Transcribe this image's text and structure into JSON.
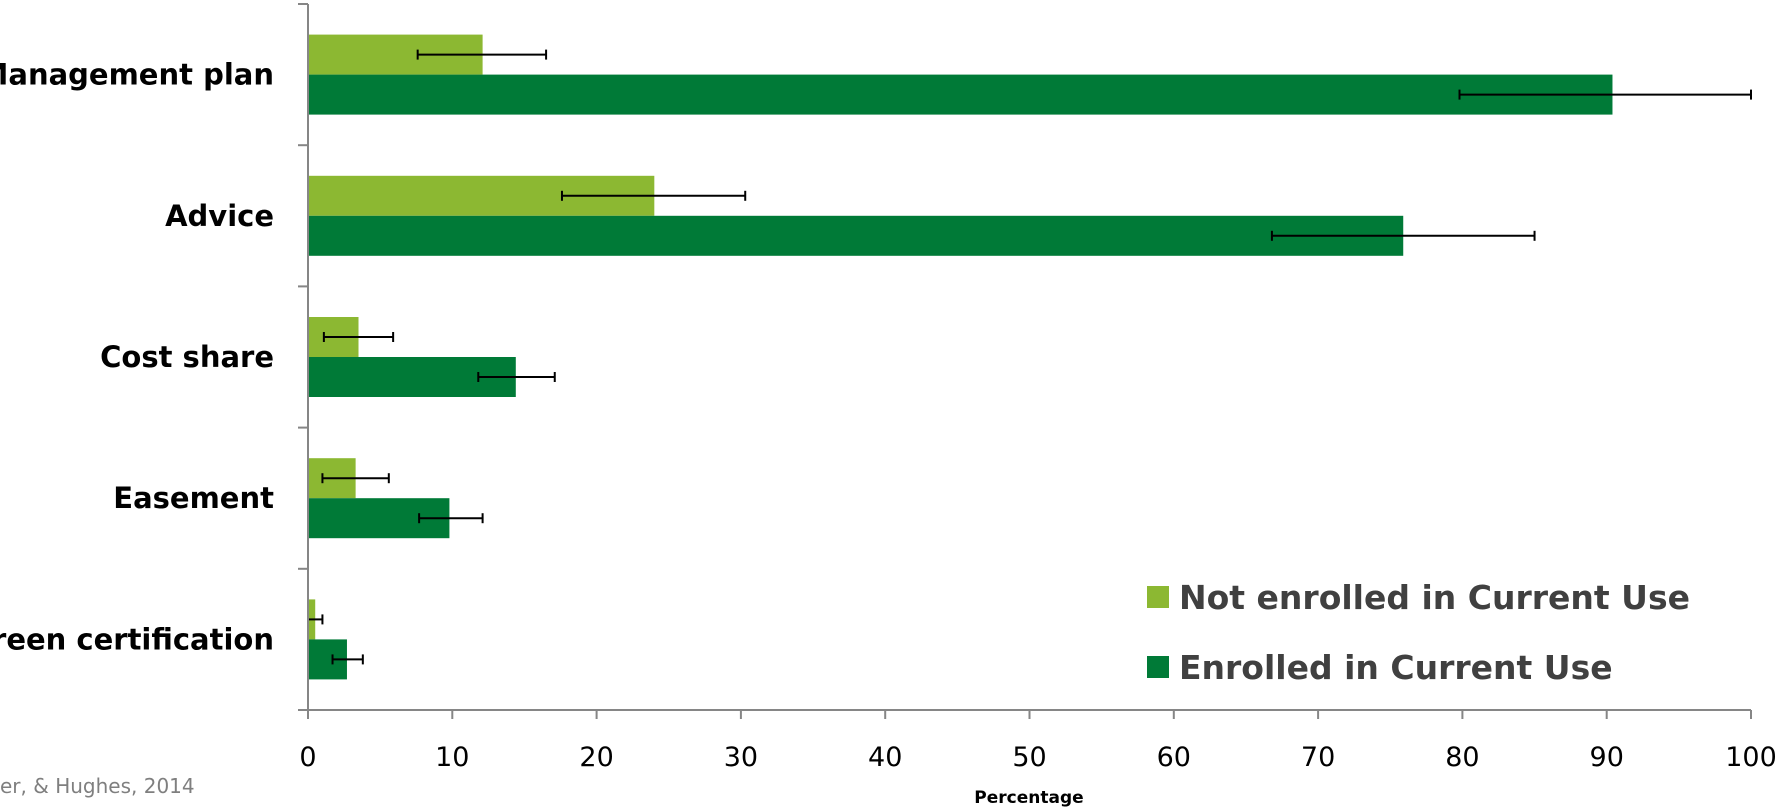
{
  "chart_data": {
    "type": "bar",
    "orientation": "horizontal",
    "categories": [
      "Management plan",
      "Advice",
      "Cost share",
      "Easement",
      "Green certification"
    ],
    "series": [
      {
        "name": "Not enrolled in Current Use",
        "color": "#8cb832",
        "values": [
          12.1,
          24.0,
          3.5,
          3.3,
          0.5
        ],
        "error_low": [
          7.6,
          17.6,
          1.1,
          1.0,
          0.0
        ],
        "error_high": [
          16.5,
          30.3,
          5.9,
          5.6,
          1.0
        ]
      },
      {
        "name": "Enrolled in Current Use",
        "color": "#007a37",
        "values": [
          90.4,
          75.9,
          14.4,
          9.8,
          2.7
        ],
        "error_low": [
          79.8,
          66.8,
          11.8,
          7.7,
          1.7
        ],
        "error_high": [
          100.0,
          85.0,
          17.1,
          12.1,
          3.8
        ]
      }
    ],
    "xlabel": "Percentage",
    "ylabel": "",
    "xlim": [
      0,
      100
    ],
    "xticks": [
      "0",
      "10",
      "20",
      "30",
      "40",
      "50",
      "60",
      "70",
      "80",
      "90",
      "100"
    ],
    "grid": false,
    "legend_position": "bottom-right"
  },
  "source_note": "er, & Hughes, 2014"
}
